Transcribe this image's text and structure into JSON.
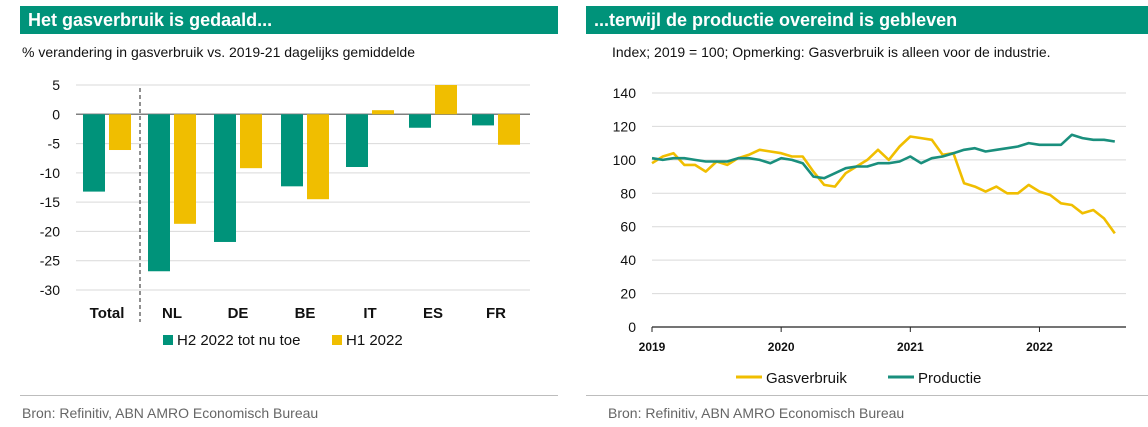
{
  "left": {
    "title": "Het gasverbruik is gedaald...",
    "subtitle": "% verandering in gasverbruik vs. 2019-21 dagelijks gemiddelde",
    "source": "Bron: Refinitiv, ABN AMRO Economisch Bureau"
  },
  "right": {
    "title": "...terwijl de productie overeind is gebleven",
    "subtitle": "Index; 2019 = 100; Opmerking: Gasverbruik is alleen voor de industrie.",
    "source": "Bron: Refinitiv, ABN AMRO Economisch Bureau"
  },
  "chart_data": [
    {
      "type": "bar",
      "categories": [
        "Total",
        "NL",
        "DE",
        "BE",
        "IT",
        "ES",
        "FR"
      ],
      "series": [
        {
          "name": "H2 2022 tot nu toe",
          "color": "#00937a",
          "values": [
            -13.2,
            -26.8,
            -21.8,
            -12.3,
            -9.0,
            -2.3,
            -1.9
          ]
        },
        {
          "name": "H1 2022",
          "color": "#f0be00",
          "values": [
            -6.1,
            -18.7,
            -9.2,
            -14.5,
            0.7,
            5.0,
            -5.2
          ]
        }
      ],
      "ylim": [
        -30,
        5
      ],
      "yticks": [
        "5",
        "0",
        "-5",
        "-10",
        "-15",
        "-20",
        "-25",
        "-30"
      ],
      "grid": true,
      "legend_position": "bottom"
    },
    {
      "type": "line",
      "x": [
        2019.0,
        2019.0833,
        2019.1667,
        2019.25,
        2019.3333,
        2019.4167,
        2019.5,
        2019.5833,
        2019.6667,
        2019.75,
        2019.8333,
        2019.9167,
        2020.0,
        2020.0833,
        2020.1667,
        2020.25,
        2020.3333,
        2020.4167,
        2020.5,
        2020.5833,
        2020.6667,
        2020.75,
        2020.8333,
        2020.9167,
        2021.0,
        2021.0833,
        2021.1667,
        2021.25,
        2021.3333,
        2021.4167,
        2021.5,
        2021.5833,
        2021.6667,
        2021.75,
        2021.8333,
        2021.9167,
        2022.0,
        2022.0833,
        2022.1667,
        2022.25,
        2022.3333,
        2022.4167,
        2022.5,
        2022.5833
      ],
      "series": [
        {
          "name": "Gasverbruik",
          "color": "#f0be00",
          "values": [
            98,
            102,
            104,
            97,
            97,
            93,
            99,
            97,
            101,
            103,
            106,
            105,
            104,
            102,
            102,
            93,
            85,
            84,
            92,
            96,
            100,
            106,
            100,
            108,
            114,
            113,
            112,
            103,
            104,
            86,
            84,
            81,
            84,
            80,
            80,
            85,
            81,
            79,
            74,
            73,
            68,
            70,
            65,
            56
          ]
        },
        {
          "name": "Productie",
          "color": "#1a8f7d",
          "values": [
            101,
            100,
            101,
            101,
            100,
            99,
            99,
            99,
            101,
            101,
            100,
            98,
            101,
            100,
            98,
            90,
            89,
            92,
            95,
            96,
            96,
            98,
            98,
            99,
            102,
            98,
            101,
            102,
            104,
            106,
            107,
            105,
            106,
            107,
            108,
            110,
            109,
            109,
            109,
            115,
            113,
            112,
            112,
            111
          ]
        }
      ],
      "xticks": [
        "2019",
        "2020",
        "2021",
        "2022"
      ],
      "ylim": [
        0,
        140
      ],
      "yticks": [
        "140",
        "120",
        "100",
        "80",
        "60",
        "40",
        "20",
        "0"
      ],
      "grid": true,
      "legend_position": "bottom"
    }
  ]
}
